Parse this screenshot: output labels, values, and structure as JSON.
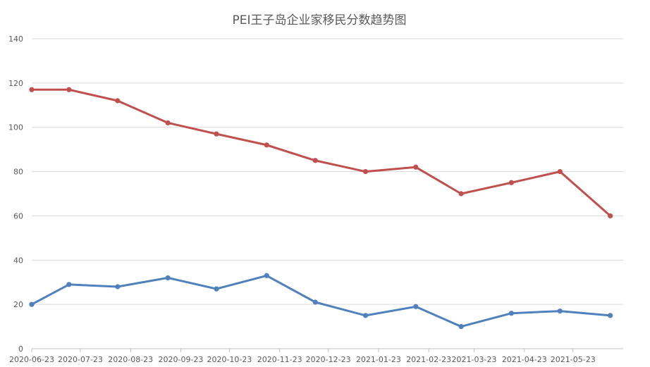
{
  "chart_data": {
    "type": "line",
    "title": "PEI王子岛企业家移民分数趋势图",
    "xlabel": "",
    "ylabel": "",
    "x_tick_labels": [
      "2020-06-23",
      "2020-07-23",
      "2020-08-23",
      "2020-09-23",
      "2020-10-23",
      "2020-11-23",
      "2020-12-23",
      "2021-01-23",
      "2021-02-23",
      "2021-03-23",
      "2021-04-23",
      "2021-05-23"
    ],
    "x_range": [
      "2020-06-23",
      "2021-06-23"
    ],
    "ylim": [
      0,
      140
    ],
    "y_ticks": [
      0,
      20,
      40,
      60,
      80,
      100,
      120,
      140
    ],
    "grid": "horizontal",
    "legend": "none",
    "series": [
      {
        "color": "#c0504d",
        "points": [
          {
            "x": "2020-06-23",
            "y": 117
          },
          {
            "x": "2020-07-16",
            "y": 117
          },
          {
            "x": "2020-08-15",
            "y": 112
          },
          {
            "x": "2020-09-15",
            "y": 102
          },
          {
            "x": "2020-10-15",
            "y": 97
          },
          {
            "x": "2020-11-15",
            "y": 92
          },
          {
            "x": "2020-12-15",
            "y": 85
          },
          {
            "x": "2021-01-15",
            "y": 80
          },
          {
            "x": "2021-02-15",
            "y": 82
          },
          {
            "x": "2021-03-15",
            "y": 70
          },
          {
            "x": "2021-04-15",
            "y": 75
          },
          {
            "x": "2021-05-15",
            "y": 80
          },
          {
            "x": "2021-06-15",
            "y": 60
          }
        ]
      },
      {
        "color": "#4f81bd",
        "points": [
          {
            "x": "2020-06-23",
            "y": 20
          },
          {
            "x": "2020-07-16",
            "y": 29
          },
          {
            "x": "2020-08-15",
            "y": 28
          },
          {
            "x": "2020-09-15",
            "y": 32
          },
          {
            "x": "2020-10-15",
            "y": 27
          },
          {
            "x": "2020-11-15",
            "y": 33
          },
          {
            "x": "2020-12-15",
            "y": 21
          },
          {
            "x": "2021-01-15",
            "y": 15
          },
          {
            "x": "2021-02-15",
            "y": 19
          },
          {
            "x": "2021-03-15",
            "y": 10
          },
          {
            "x": "2021-04-15",
            "y": 16
          },
          {
            "x": "2021-05-15",
            "y": 17
          },
          {
            "x": "2021-06-15",
            "y": 15
          }
        ]
      }
    ]
  }
}
